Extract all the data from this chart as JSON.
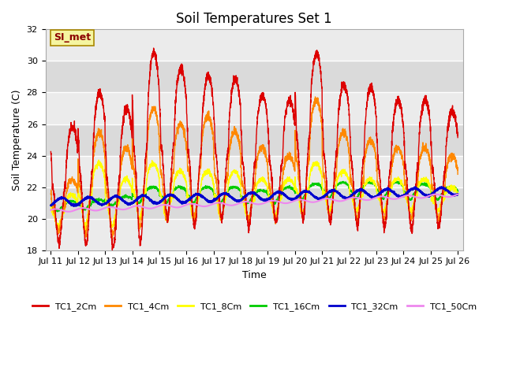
{
  "title": "Soil Temperatures Set 1",
  "xlabel": "Time",
  "ylabel": "Soil Temperature (C)",
  "ylim": [
    18,
    32
  ],
  "annotation": "SI_met",
  "background_color": "#ffffff",
  "plot_bg_color": "#e0e0e0",
  "grid_color": "#ffffff",
  "band_color_light": "#e8e8e8",
  "band_color_dark": "#d8d8d8",
  "series": {
    "TC1_2Cm": {
      "color": "#dd0000",
      "lw": 1.0
    },
    "TC1_4Cm": {
      "color": "#ff8800",
      "lw": 1.0
    },
    "TC1_8Cm": {
      "color": "#ffff00",
      "lw": 1.0
    },
    "TC1_16Cm": {
      "color": "#00cc00",
      "lw": 1.0
    },
    "TC1_32Cm": {
      "color": "#0000cc",
      "lw": 1.5
    },
    "TC1_50Cm": {
      "color": "#ee88ee",
      "lw": 1.5
    }
  },
  "legend_colors": {
    "TC1_2Cm": "#dd0000",
    "TC1_4Cm": "#ff8800",
    "TC1_8Cm": "#ffff00",
    "TC1_16Cm": "#00cc00",
    "TC1_32Cm": "#0000cc",
    "TC1_50Cm": "#ee88ee"
  },
  "n_points": 3600,
  "start_day": 11,
  "end_day": 26,
  "title_fontsize": 12,
  "axis_label_fontsize": 9,
  "tick_fontsize": 8
}
